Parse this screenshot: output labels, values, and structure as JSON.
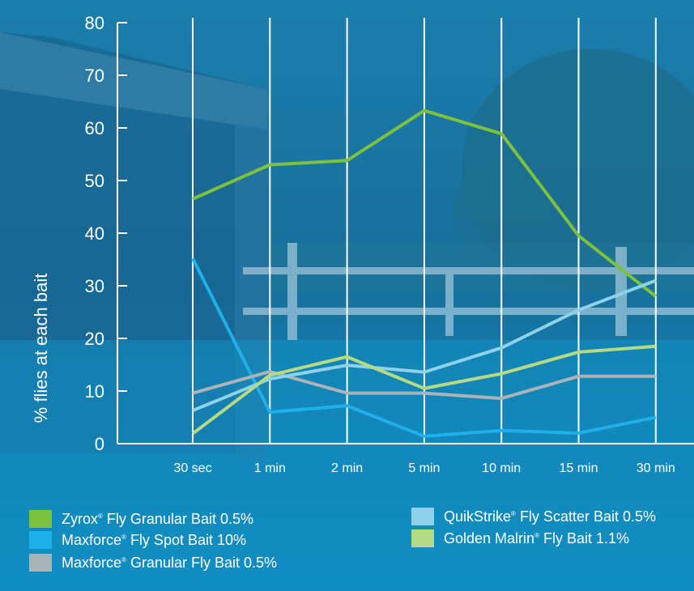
{
  "chart_data": {
    "type": "line",
    "ylabel": "% flies at each bait",
    "xlabel": "",
    "categories": [
      "30 sec",
      "1 min",
      "2 min",
      "5 min",
      "10 min",
      "15 min",
      "30 min"
    ],
    "yticks": [
      "0",
      "10",
      "20",
      "30",
      "40",
      "50",
      "60",
      "70",
      "80"
    ],
    "ylim": [
      0,
      80
    ],
    "grid": "vertical",
    "legend_placement": "bottom",
    "series": [
      {
        "name": "Zyrox",
        "suffix": " Fly Granular Bait 0.5%",
        "color": "#7dc13e",
        "values": [
          46.5,
          53,
          53.8,
          63.3,
          58.9,
          39.5,
          28
        ]
      },
      {
        "name": "Maxforce",
        "suffix": " Fly Spot Bait 10%",
        "color": "#1fb0eb",
        "values": [
          35.2,
          6,
          7.2,
          1.4,
          2.5,
          2,
          5
        ]
      },
      {
        "name": "Maxforce",
        "suffix": " Granular Fly Bait 0.5%",
        "color": "#aab3b8",
        "values": [
          9.6,
          13.7,
          9.6,
          9.6,
          8.6,
          12.8,
          12.8
        ]
      },
      {
        "name": "QuikStrike",
        "suffix": " Fly Scatter Bait 0.5%",
        "color": "#8ed2ea",
        "values": [
          6.3,
          12.3,
          14.9,
          13.6,
          18.2,
          25.4,
          31
        ]
      },
      {
        "name": "Golden Malrin",
        "suffix": " Fly Bait 1.1%",
        "color": "#b5d984",
        "values": [
          1.9,
          13,
          16.5,
          10.5,
          13.3,
          17.4,
          18.5
        ]
      }
    ]
  },
  "legend": {
    "registered_mark": "®"
  },
  "colors": {
    "background_top": "#1c7fae",
    "background_bottom": "#0f8fc1",
    "axis": "#ffffff",
    "gridline": "#ffffff"
  }
}
